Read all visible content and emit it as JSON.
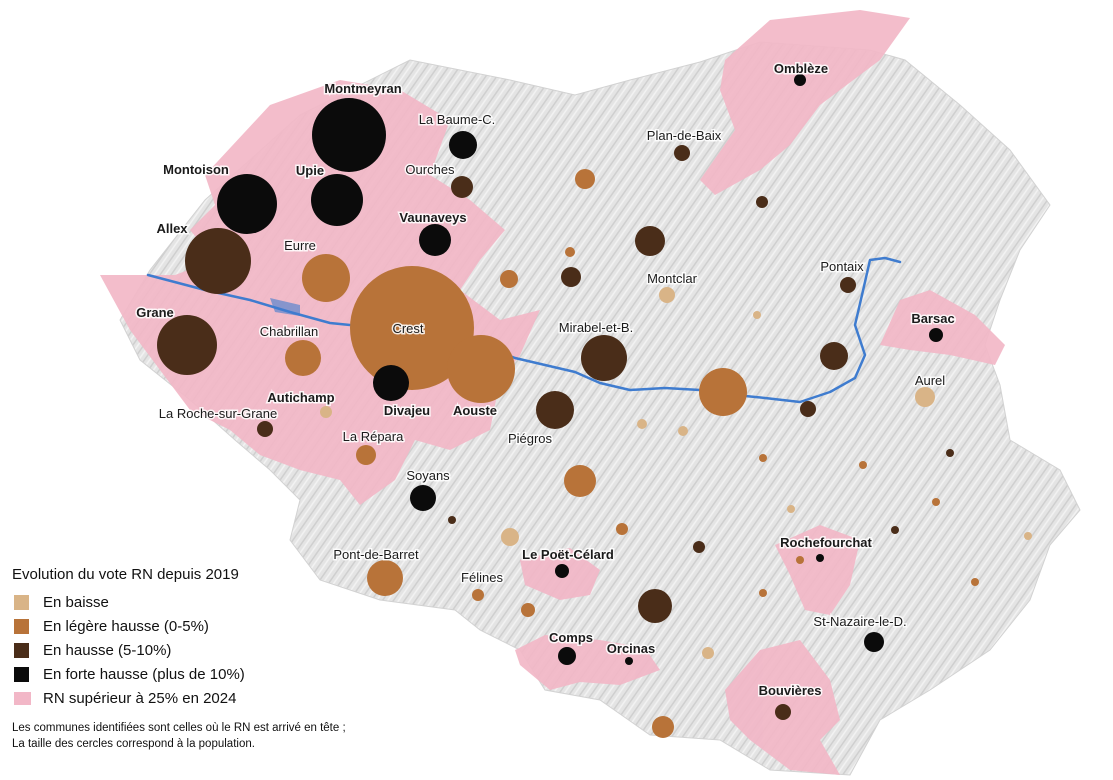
{
  "legend": {
    "title": "Evolution du vote RN depuis 2019",
    "items": [
      {
        "label": "En baisse",
        "color": "#d9b487"
      },
      {
        "label": "En légère hausse (0-5%)",
        "color": "#b87339"
      },
      {
        "label": "En hausse (5-10%)",
        "color": "#4a2d19"
      },
      {
        "label": "En forte hausse (plus de 10%)",
        "color": "#0b0b0b"
      },
      {
        "label": "RN supérieur à 25% en 2024",
        "color": "#f2b7c7"
      }
    ],
    "note_line1": "Les communes identifiées sont celles où le RN est arrivé en tête ;",
    "note_line2": "La taille des cercles correspond à la population."
  },
  "colors": {
    "baisse": "#d9b487",
    "legere": "#b87339",
    "hausse": "#4a2d19",
    "forte": "#0b0b0b",
    "rn25": "#f2b7c7",
    "river": "#3f7ccf",
    "terrain": "#e3e3e3"
  },
  "communes": [
    {
      "name": "Montmeyran",
      "category": "forte"
    },
    {
      "name": "La Baume-C.",
      "category": "forte"
    },
    {
      "name": "Ombleze",
      "label": "Omblèze",
      "category": "forte"
    },
    {
      "name": "Plan-de-Baix",
      "category": "hausse"
    },
    {
      "name": "Montoison",
      "category": "forte"
    },
    {
      "name": "Upie",
      "category": "forte"
    },
    {
      "name": "Ourches",
      "category": "hausse"
    },
    {
      "name": "Allex",
      "category": "hausse"
    },
    {
      "name": "Vaunaveys",
      "category": "forte"
    },
    {
      "name": "Eurre",
      "category": "legere"
    },
    {
      "name": "Montclar",
      "category": "baisse"
    },
    {
      "name": "Pontaix",
      "category": "hausse"
    },
    {
      "name": "Grane",
      "category": "hausse"
    },
    {
      "name": "Crest",
      "category": "legere"
    },
    {
      "name": "Chabrillan",
      "category": "legere"
    },
    {
      "name": "Mirabel-et-B.",
      "category": "hausse"
    },
    {
      "name": "Barsac",
      "category": "forte"
    },
    {
      "name": "Aurel",
      "category": "baisse"
    },
    {
      "name": "Autichamp",
      "category": "baisse"
    },
    {
      "name": "Divajeu",
      "category": "forte"
    },
    {
      "name": "Aouste",
      "category": "legere"
    },
    {
      "name": "La Roche-sur-Grane",
      "category": "hausse"
    },
    {
      "name": "La Repara",
      "label": "La Répara",
      "category": "legere"
    },
    {
      "name": "Piegros",
      "label": "Piégros",
      "category": "hausse"
    },
    {
      "name": "Soyans",
      "category": "forte"
    },
    {
      "name": "Rochefourchat",
      "category": "forte"
    },
    {
      "name": "Pont-de-Barret",
      "category": "legere"
    },
    {
      "name": "Le Poet-Celard",
      "label": "Le Poët-Célard",
      "category": "forte"
    },
    {
      "name": "Felines",
      "label": "Félines",
      "category": "legere"
    },
    {
      "name": "St-Nazaire-le-D.",
      "category": "forte"
    },
    {
      "name": "Comps",
      "category": "forte"
    },
    {
      "name": "Orcinas",
      "category": "forte"
    },
    {
      "name": "Bouvieres",
      "label": "Bouvières",
      "category": "hausse"
    }
  ],
  "unlabeled_communes": [
    {
      "category": "legere"
    },
    {
      "category": "hausse"
    },
    {
      "category": "legere"
    },
    {
      "category": "hausse"
    },
    {
      "category": "hausse"
    },
    {
      "category": "hausse"
    },
    {
      "category": "baisse"
    },
    {
      "category": "hausse"
    },
    {
      "category": "legere"
    },
    {
      "category": "hausse"
    },
    {
      "category": "baisse"
    },
    {
      "category": "baisse"
    },
    {
      "category": "legere"
    },
    {
      "category": "legere"
    },
    {
      "category": "legere"
    },
    {
      "category": "baisse"
    },
    {
      "category": "legere"
    },
    {
      "category": "baisse"
    },
    {
      "category": "hausse"
    },
    {
      "category": "hausse"
    },
    {
      "category": "baisse"
    },
    {
      "category": "legere"
    },
    {
      "category": "legere"
    },
    {
      "category": "legere"
    },
    {
      "category": "legere"
    },
    {
      "category": "baisse"
    },
    {
      "category": "legere"
    },
    {
      "category": "legere"
    },
    {
      "category": "hausse"
    },
    {
      "category": "legere"
    },
    {
      "category": "hausse"
    }
  ]
}
